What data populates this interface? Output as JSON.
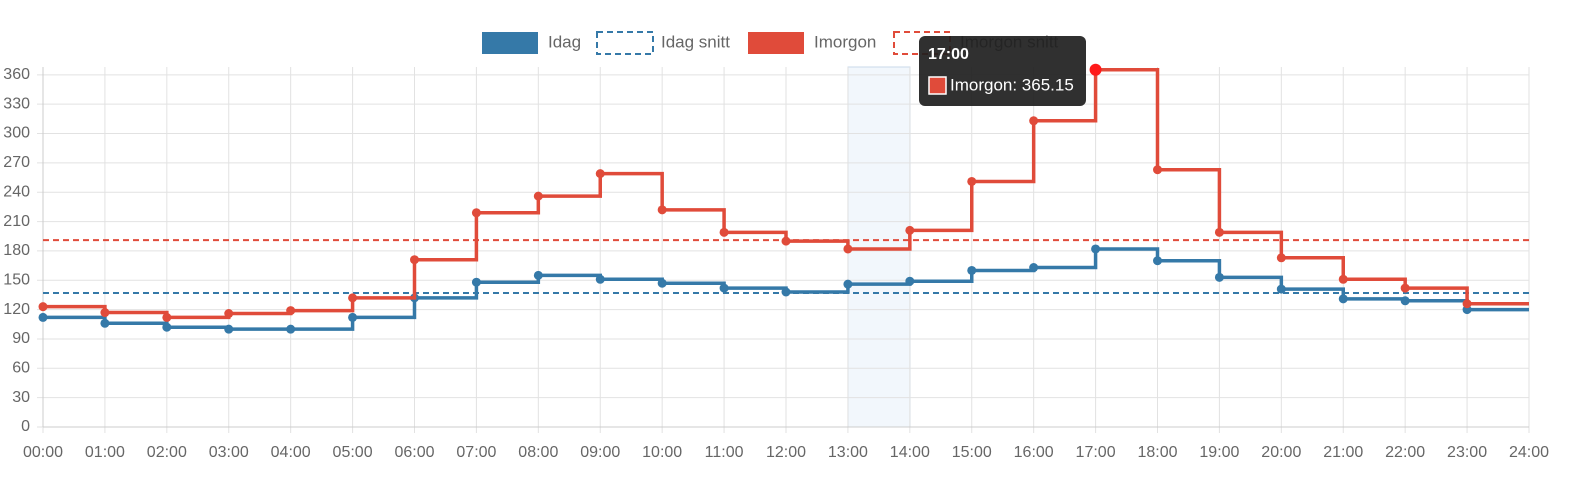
{
  "chart_data": {
    "type": "step-line",
    "categories": [
      "00:00",
      "01:00",
      "02:00",
      "03:00",
      "04:00",
      "05:00",
      "06:00",
      "07:00",
      "08:00",
      "09:00",
      "10:00",
      "11:00",
      "12:00",
      "13:00",
      "14:00",
      "15:00",
      "16:00",
      "17:00",
      "18:00",
      "19:00",
      "20:00",
      "21:00",
      "22:00",
      "23:00",
      "24:00"
    ],
    "series": [
      {
        "name": "Idag",
        "color": "#3579a8",
        "dashed": false,
        "values": [
          112,
          106,
          102,
          100,
          100,
          112,
          132,
          148,
          155,
          151,
          147,
          142,
          138,
          146,
          149,
          160,
          163,
          182,
          170,
          153,
          141,
          131,
          129,
          120,
          null
        ]
      },
      {
        "name": "Idag snitt",
        "color": "#3579a8",
        "dashed": true,
        "value": 137
      },
      {
        "name": "Imorgon",
        "color": "#e04b3a",
        "dashed": false,
        "values": [
          123,
          117,
          112,
          116,
          119,
          132,
          171,
          219,
          236,
          259,
          222,
          199,
          190,
          182,
          201,
          251,
          313,
          365.15,
          263,
          199,
          173,
          151,
          142,
          126,
          null
        ]
      },
      {
        "name": "Imorgon snitt",
        "color": "#e04b3a",
        "dashed": true,
        "value": 191
      }
    ],
    "ylim": [
      0,
      368
    ],
    "yticks": [
      0,
      30,
      60,
      90,
      120,
      150,
      180,
      210,
      240,
      270,
      300,
      330,
      360
    ],
    "grid": true,
    "legend": "top",
    "tooltip": {
      "label": "Imorgon: 365.15"
    }
  }
}
